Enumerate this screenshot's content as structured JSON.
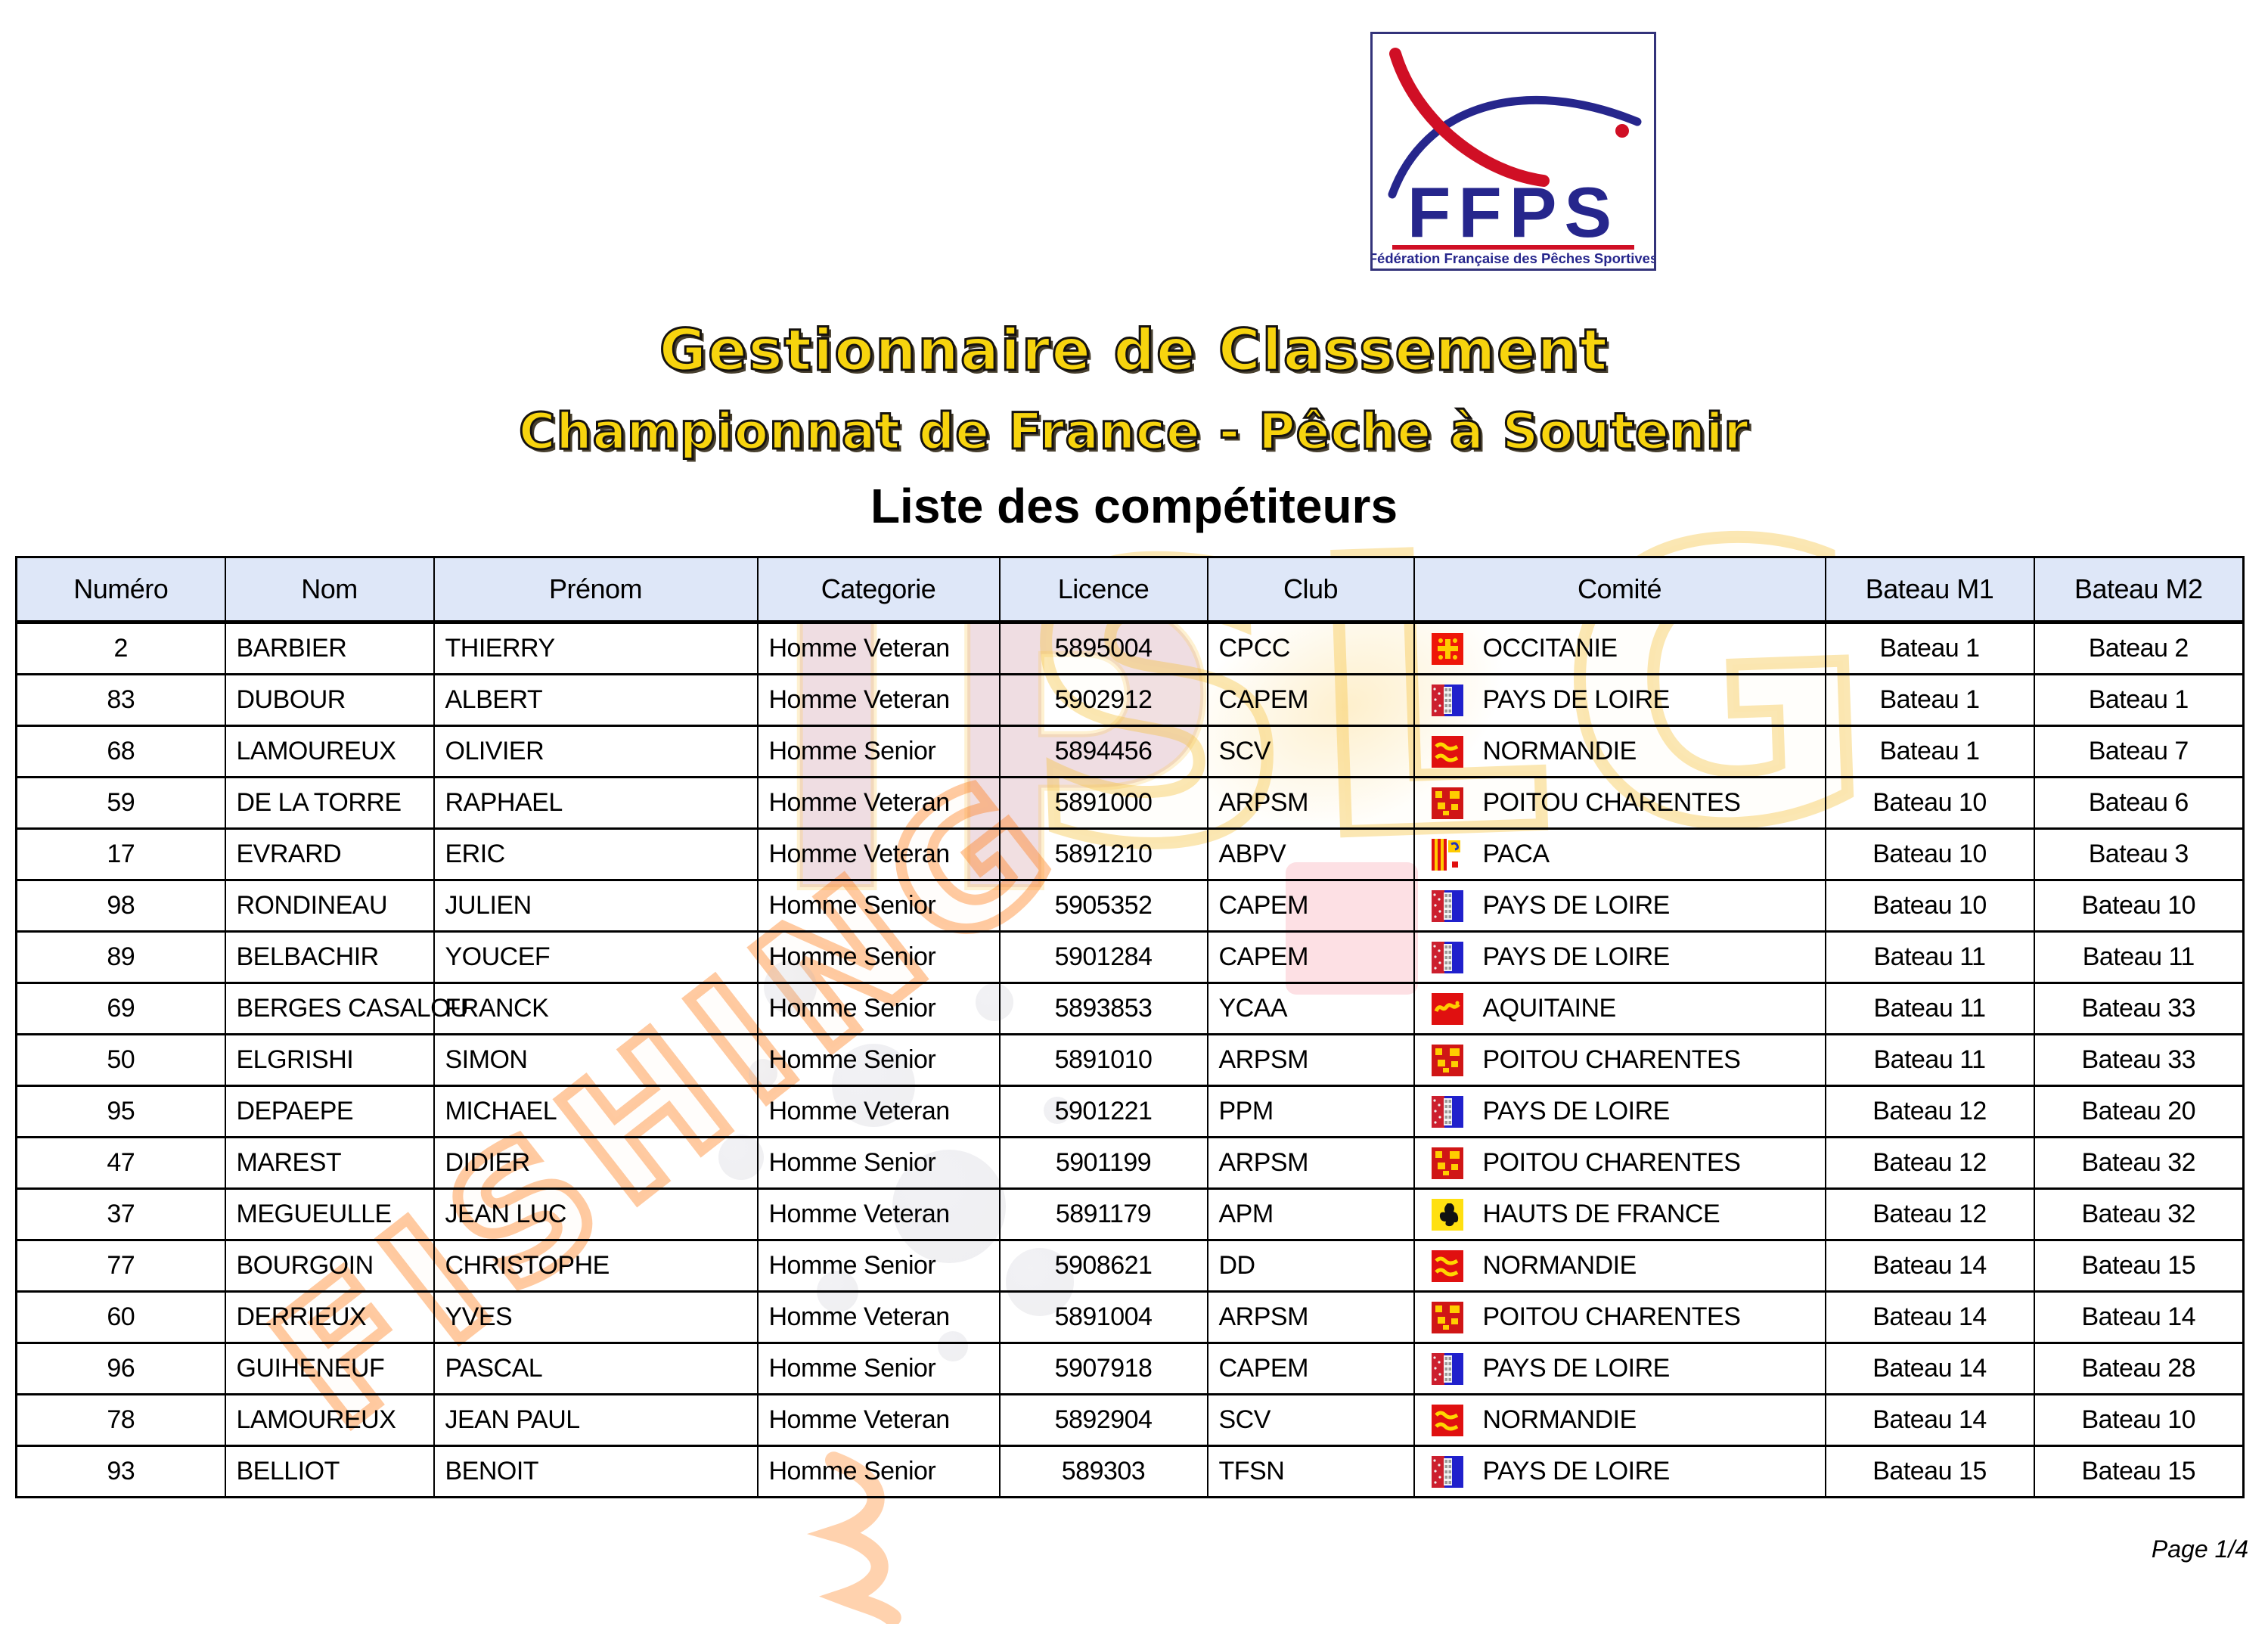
{
  "page": {
    "title1": "Gestionnaire de Classement",
    "title2": "Championnat de France - Pêche à Soutenir",
    "title3": "Liste des compétiteurs",
    "page_label": "Page 1/4"
  },
  "logo": {
    "acronym": "FFPS",
    "caption": "Fédération Française des Pêches Sportives"
  },
  "watermark": {
    "red_letters": "IP",
    "yellow_letters": "SLG",
    "orange_letters": "FISHING"
  },
  "colors": {
    "header_bg": "#dee7f8",
    "border": "#000000",
    "title_yellow": "#f7d40e",
    "logo_navy": "#26268c",
    "logo_red": "#d00f25"
  },
  "table": {
    "headers": [
      "Numéro",
      "Nom",
      "Prénom",
      "Categorie",
      "Licence",
      "Club",
      "Comité",
      "Bateau M1",
      "Bateau M2"
    ],
    "rows": [
      {
        "numero": "2",
        "nom": "BARBIER",
        "prenom": "THIERRY",
        "categorie": "Homme Veteran",
        "licence": "5895004",
        "club": "CPCC",
        "comite": "OCCITANIE",
        "flag": "occitanie",
        "m1": "Bateau 1",
        "m2": "Bateau 2"
      },
      {
        "numero": "83",
        "nom": "DUBOUR",
        "prenom": "ALBERT",
        "categorie": "Homme Veteran",
        "licence": "5902912",
        "club": "CAPEM",
        "comite": "PAYS DE LOIRE",
        "flag": "pays-de-loire",
        "m1": "Bateau 1",
        "m2": "Bateau 1"
      },
      {
        "numero": "68",
        "nom": "LAMOUREUX",
        "prenom": "OLIVIER",
        "categorie": "Homme Senior",
        "licence": "5894456",
        "club": "SCV",
        "comite": "NORMANDIE",
        "flag": "normandie",
        "m1": "Bateau 1",
        "m2": "Bateau 7"
      },
      {
        "numero": "59",
        "nom": "DE LA TORRE",
        "prenom": "RAPHAEL",
        "categorie": "Homme Veteran",
        "licence": "5891000",
        "club": "ARPSM",
        "comite": "POITOU CHARENTES",
        "flag": "poitou-charentes",
        "m1": "Bateau 10",
        "m2": "Bateau 6"
      },
      {
        "numero": "17",
        "nom": "EVRARD",
        "prenom": "ERIC",
        "categorie": "Homme Veteran",
        "licence": "5891210",
        "club": "ABPV",
        "comite": "PACA",
        "flag": "paca",
        "m1": "Bateau 10",
        "m2": "Bateau 3"
      },
      {
        "numero": "98",
        "nom": "RONDINEAU",
        "prenom": "JULIEN",
        "categorie": "Homme Senior",
        "licence": "5905352",
        "club": "CAPEM",
        "comite": "PAYS DE LOIRE",
        "flag": "pays-de-loire",
        "m1": "Bateau 10",
        "m2": "Bateau 10"
      },
      {
        "numero": "89",
        "nom": "BELBACHIR",
        "prenom": "YOUCEF",
        "categorie": "Homme Senior",
        "licence": "5901284",
        "club": "CAPEM",
        "comite": "PAYS DE LOIRE",
        "flag": "pays-de-loire",
        "m1": "Bateau 11",
        "m2": "Bateau 11"
      },
      {
        "numero": "69",
        "nom": "BERGES CASALOU",
        "prenom": "FRANCK",
        "categorie": "Homme Senior",
        "licence": "5893853",
        "club": "YCAA",
        "comite": "AQUITAINE",
        "flag": "aquitaine",
        "m1": "Bateau 11",
        "m2": "Bateau 33"
      },
      {
        "numero": "50",
        "nom": "ELGRISHI",
        "prenom": "SIMON",
        "categorie": "Homme Senior",
        "licence": "5891010",
        "club": "ARPSM",
        "comite": "POITOU CHARENTES",
        "flag": "poitou-charentes",
        "m1": "Bateau 11",
        "m2": "Bateau 33"
      },
      {
        "numero": "95",
        "nom": "DEPAEPE",
        "prenom": "MICHAEL",
        "categorie": "Homme Veteran",
        "licence": "5901221",
        "club": "PPM",
        "comite": "PAYS DE LOIRE",
        "flag": "pays-de-loire",
        "m1": "Bateau 12",
        "m2": "Bateau 20"
      },
      {
        "numero": "47",
        "nom": "MAREST",
        "prenom": "DIDIER",
        "categorie": "Homme Senior",
        "licence": "5901199",
        "club": "ARPSM",
        "comite": "POITOU CHARENTES",
        "flag": "poitou-charentes",
        "m1": "Bateau 12",
        "m2": "Bateau 32"
      },
      {
        "numero": "37",
        "nom": "MEGUEULLE",
        "prenom": "JEAN LUC",
        "categorie": "Homme Veteran",
        "licence": "5891179",
        "club": "APM",
        "comite": "HAUTS DE FRANCE",
        "flag": "hauts-de-france",
        "m1": "Bateau 12",
        "m2": "Bateau 32"
      },
      {
        "numero": "77",
        "nom": "BOURGOIN",
        "prenom": "CHRISTOPHE",
        "categorie": "Homme Senior",
        "licence": "5908621",
        "club": "DD",
        "comite": "NORMANDIE",
        "flag": "normandie",
        "m1": "Bateau 14",
        "m2": "Bateau 15"
      },
      {
        "numero": "60",
        "nom": "DERRIEUX",
        "prenom": "YVES",
        "categorie": "Homme Veteran",
        "licence": "5891004",
        "club": "ARPSM",
        "comite": "POITOU CHARENTES",
        "flag": "poitou-charentes",
        "m1": "Bateau 14",
        "m2": "Bateau 14"
      },
      {
        "numero": "96",
        "nom": "GUIHENEUF",
        "prenom": "PASCAL",
        "categorie": "Homme Senior",
        "licence": "5907918",
        "club": "CAPEM",
        "comite": "PAYS DE LOIRE",
        "flag": "pays-de-loire",
        "m1": "Bateau 14",
        "m2": "Bateau 28"
      },
      {
        "numero": "78",
        "nom": "LAMOUREUX",
        "prenom": "JEAN PAUL",
        "categorie": "Homme Veteran",
        "licence": "5892904",
        "club": "SCV",
        "comite": "NORMANDIE",
        "flag": "normandie",
        "m1": "Bateau 14",
        "m2": "Bateau 10"
      },
      {
        "numero": "93",
        "nom": "BELLIOT",
        "prenom": "BENOIT",
        "categorie": "Homme Senior",
        "licence": "589303",
        "club": "TFSN",
        "comite": "PAYS DE LOIRE",
        "flag": "pays-de-loire",
        "m1": "Bateau 15",
        "m2": "Bateau 15"
      }
    ]
  }
}
